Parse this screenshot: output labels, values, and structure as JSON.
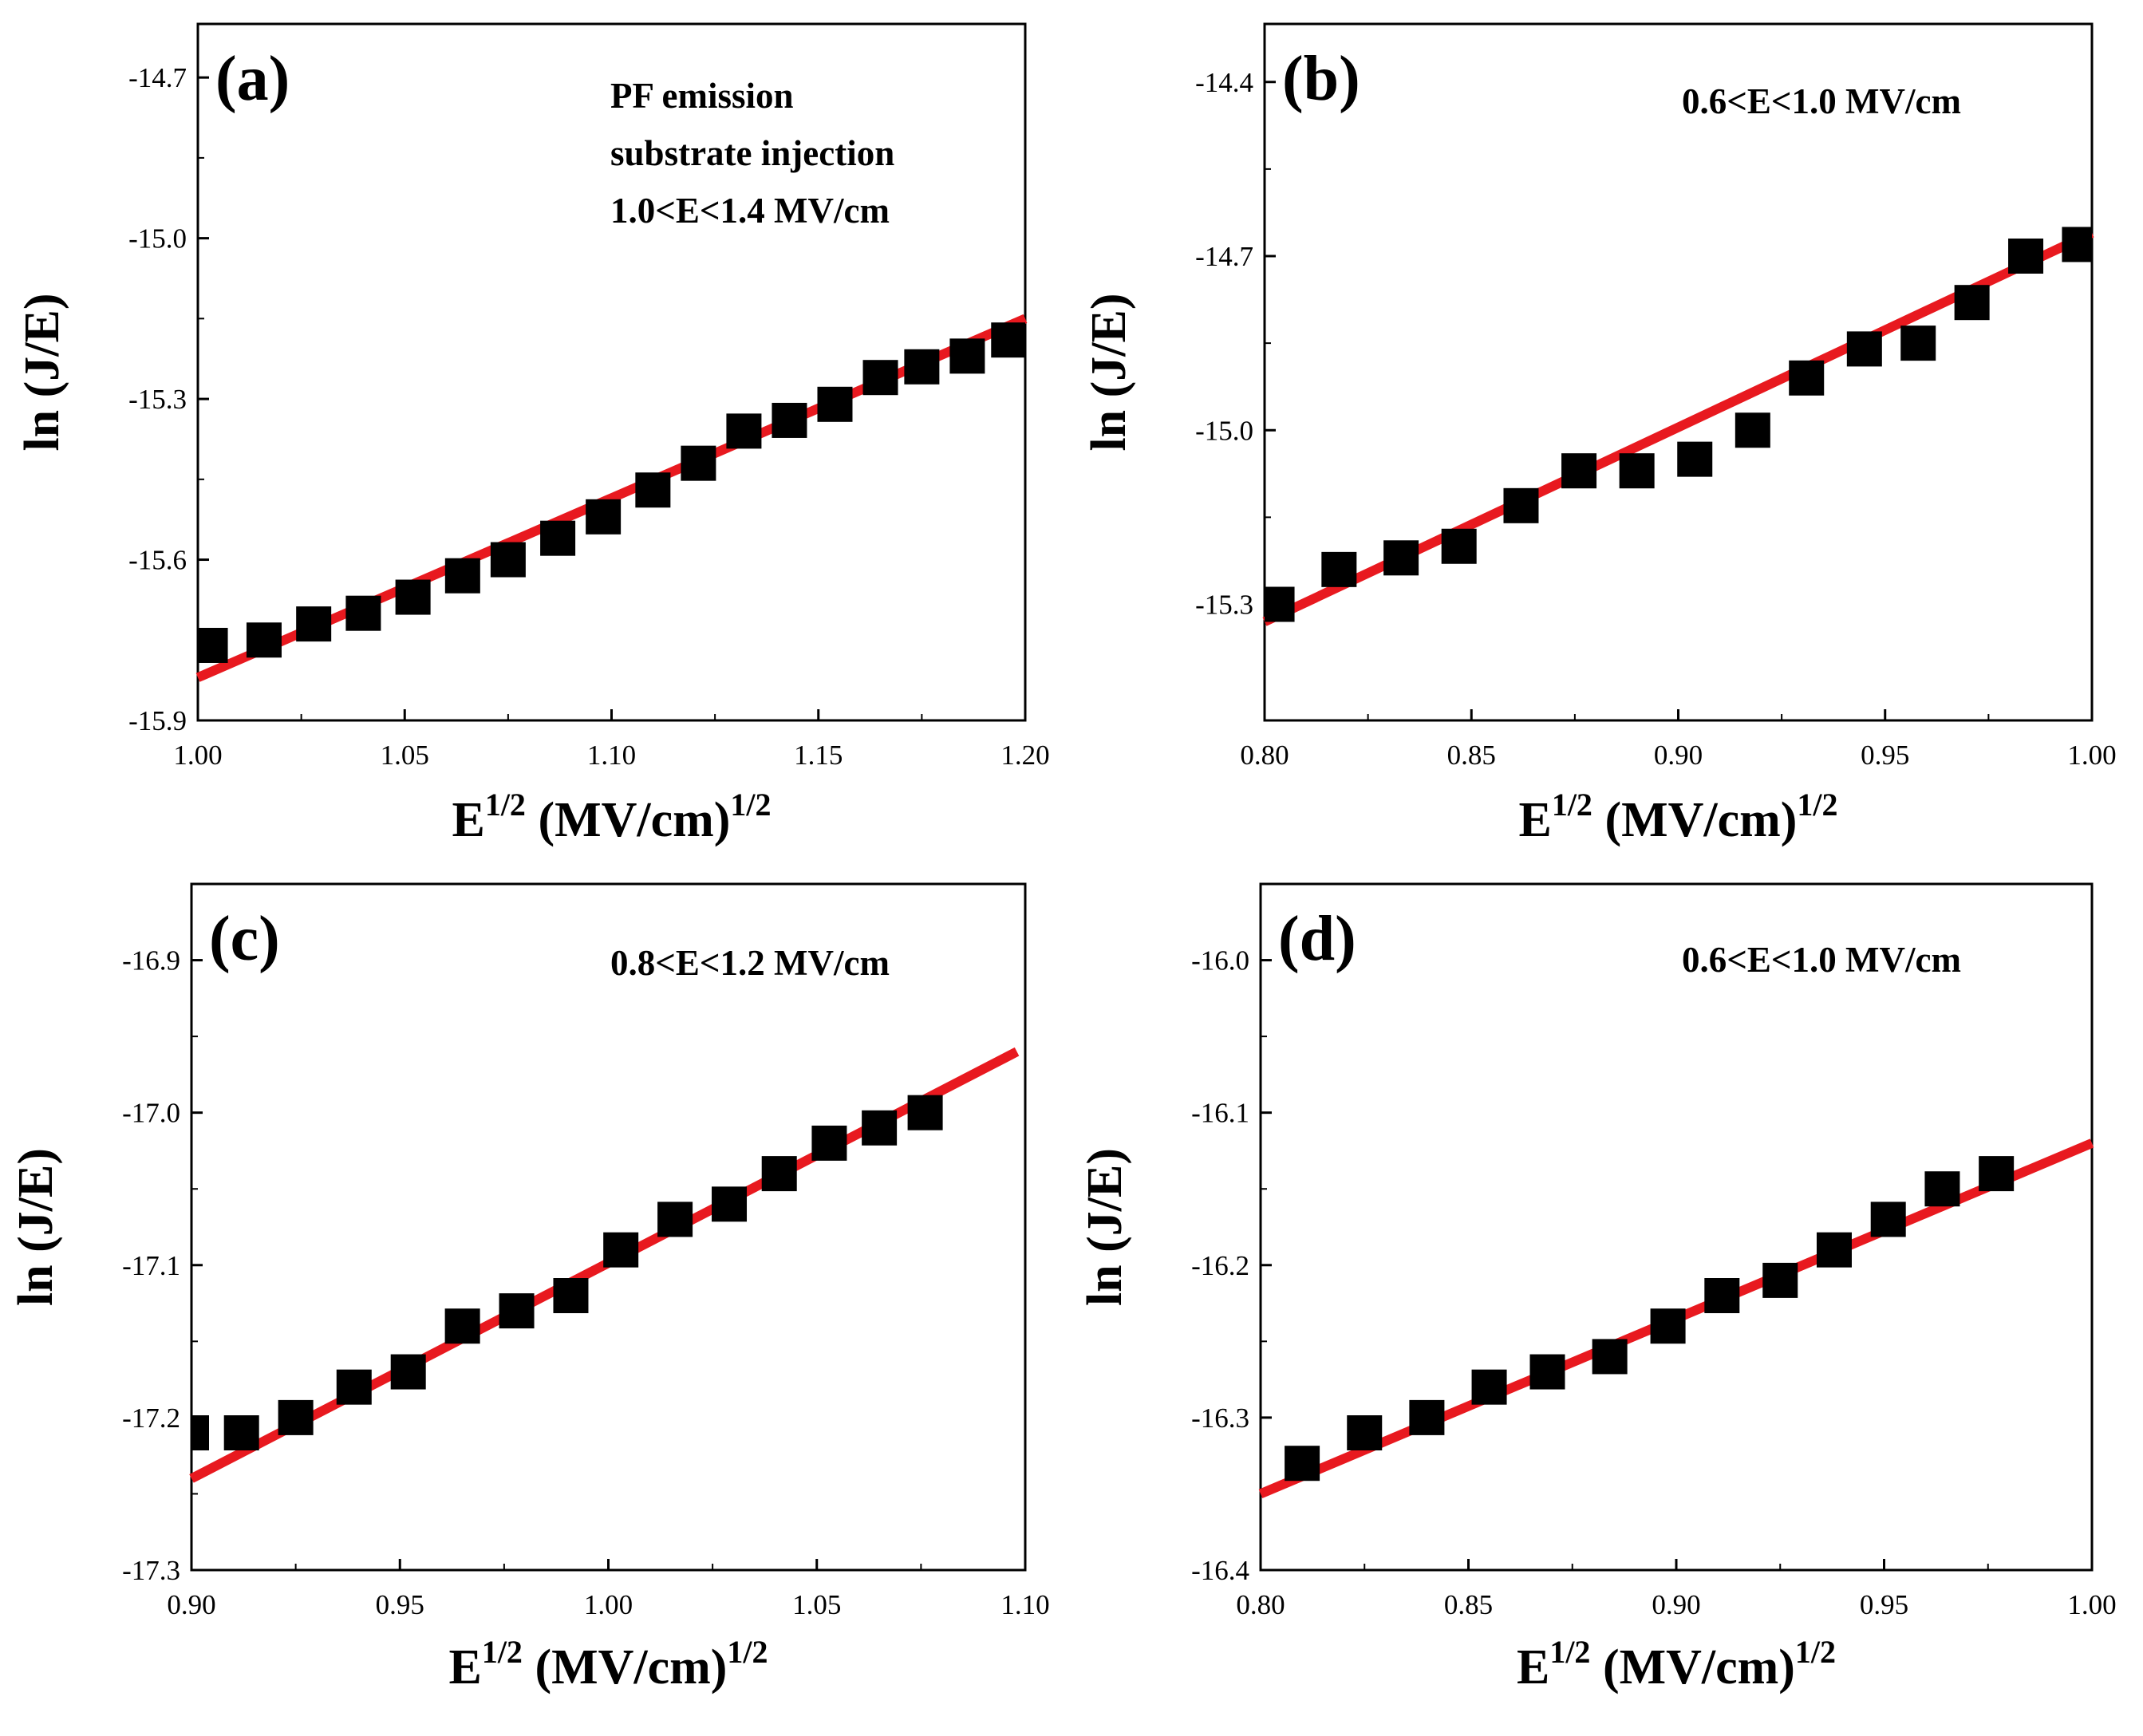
{
  "figure": {
    "colors": {
      "points": "#000000",
      "fit": "#e8191f",
      "axes": "#000000"
    }
  },
  "chart_data": [
    {
      "type": "scatter",
      "panel": "(a)",
      "annotations": [
        "PF emission",
        "substrate injection",
        "1.0<E<1.4 MV/cm"
      ],
      "xlabel": "E",
      "xlabel_sup": "1/2",
      "xlabel_unit": " (MV/cm)",
      "xlabel_unit_sup": "1/2",
      "ylabel": "ln (J/E)",
      "xlim": [
        1.0,
        1.2
      ],
      "ylim": [
        -15.9,
        -14.6
      ],
      "xticks": [
        "1.00",
        "1.05",
        "1.10",
        "1.15",
        "1.20"
      ],
      "yticks": [
        "-15.9",
        "-15.6",
        "-15.3",
        "-15.0",
        "-14.7"
      ],
      "x": [
        1.003,
        1.016,
        1.028,
        1.04,
        1.052,
        1.064,
        1.075,
        1.087,
        1.098,
        1.11,
        1.121,
        1.132,
        1.143,
        1.154,
        1.165,
        1.175,
        1.186,
        1.196
      ],
      "y": [
        -15.76,
        -15.75,
        -15.72,
        -15.7,
        -15.67,
        -15.63,
        -15.6,
        -15.56,
        -15.52,
        -15.47,
        -15.42,
        -15.36,
        -15.34,
        -15.31,
        -15.26,
        -15.24,
        -15.22,
        -15.19
      ],
      "fit": {
        "x": [
          1.0,
          1.2
        ],
        "y": [
          -15.82,
          -15.15
        ]
      }
    },
    {
      "type": "scatter",
      "panel": "(b)",
      "annotations": [
        "0.6<E<1.0 MV/cm"
      ],
      "xlabel": "E",
      "xlabel_sup": "1/2",
      "xlabel_unit": " (MV/cm)",
      "xlabel_unit_sup": "1/2",
      "ylabel": "ln (J/E)",
      "xlim": [
        0.8,
        1.0
      ],
      "ylim": [
        -15.5,
        -14.3
      ],
      "xticks": [
        "0.80",
        "0.85",
        "0.90",
        "0.95",
        "1.00"
      ],
      "yticks": [
        "-15.3",
        "-15.0",
        "-14.7",
        "-14.4"
      ],
      "x": [
        0.803,
        0.818,
        0.833,
        0.847,
        0.862,
        0.876,
        0.89,
        0.904,
        0.918,
        0.931,
        0.945,
        0.958,
        0.971,
        0.984,
        0.997
      ],
      "y": [
        -15.3,
        -15.24,
        -15.22,
        -15.2,
        -15.13,
        -15.07,
        -15.07,
        -15.05,
        -15.0,
        -14.91,
        -14.86,
        -14.85,
        -14.78,
        -14.7,
        -14.68
      ],
      "fit": {
        "x": [
          0.8,
          1.0
        ],
        "y": [
          -15.33,
          -14.66
        ]
      }
    },
    {
      "type": "scatter",
      "panel": "(c)",
      "annotations": [
        "0.8<E<1.2 MV/cm"
      ],
      "xlabel": "E",
      "xlabel_sup": "1/2",
      "xlabel_unit": " (MV/cm)",
      "xlabel_unit_sup": "1/2",
      "ylabel": "ln (J/E)",
      "xlim": [
        0.9,
        1.1
      ],
      "ylim": [
        -17.3,
        -16.85
      ],
      "xticks": [
        "0.90",
        "0.95",
        "1.00",
        "1.05",
        "1.10"
      ],
      "yticks": [
        "-17.3",
        "-17.2",
        "-17.1",
        "-17.0",
        "-16.9"
      ],
      "x": [
        0.9,
        0.912,
        0.925,
        0.939,
        0.952,
        0.965,
        0.978,
        0.991,
        1.003,
        1.016,
        1.029,
        1.041,
        1.053,
        1.065,
        1.076
      ],
      "y": [
        -17.21,
        -17.21,
        -17.2,
        -17.18,
        -17.17,
        -17.14,
        -17.13,
        -17.12,
        -17.09,
        -17.07,
        -17.06,
        -17.04,
        -17.02,
        -17.01,
        -17.0
      ],
      "fit": {
        "x": [
          0.9,
          1.098
        ],
        "y": [
          -17.24,
          -16.96
        ]
      }
    },
    {
      "type": "scatter",
      "panel": "(d)",
      "annotations": [
        "0.6<E<1.0 MV/cm"
      ],
      "xlabel": "E",
      "xlabel_sup": "1/2",
      "xlabel_unit": " (MV/cm)",
      "xlabel_unit_sup": "1/2",
      "ylabel": "ln (J/E)",
      "xlim": [
        0.8,
        1.0
      ],
      "ylim": [
        -16.4,
        -15.95
      ],
      "xticks": [
        "0.80",
        "0.85",
        "0.90",
        "0.95",
        "1.00"
      ],
      "yticks": [
        "-16.4",
        "-16.3",
        "-16.2",
        "-16.1",
        "-16.0"
      ],
      "x": [
        0.81,
        0.825,
        0.84,
        0.855,
        0.869,
        0.884,
        0.898,
        0.911,
        0.925,
        0.938,
        0.951,
        0.964,
        0.977
      ],
      "y": [
        -16.33,
        -16.31,
        -16.3,
        -16.28,
        -16.27,
        -16.26,
        -16.24,
        -16.22,
        -16.21,
        -16.19,
        -16.17,
        -16.15,
        -16.14
      ],
      "fit": {
        "x": [
          0.8,
          1.0
        ],
        "y": [
          -16.35,
          -16.12
        ]
      }
    }
  ]
}
